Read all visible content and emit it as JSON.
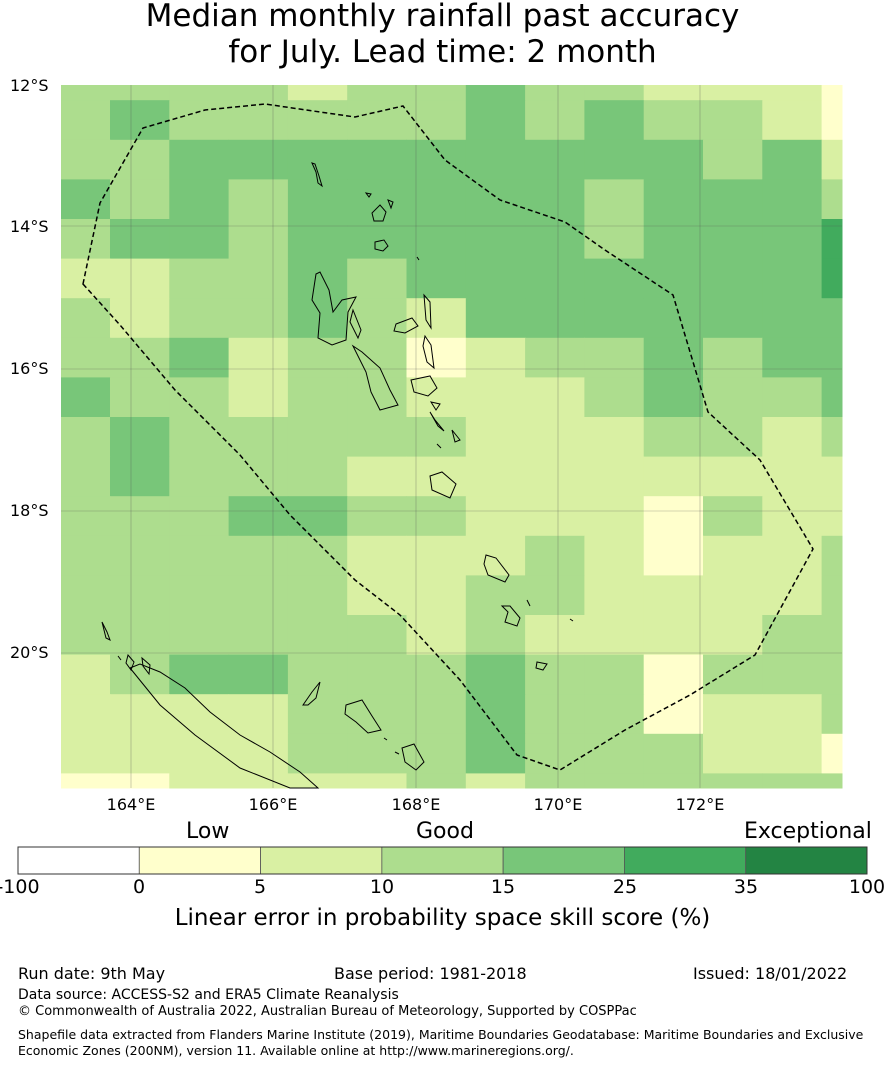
{
  "title": {
    "line1": "Median monthly rainfall past accuracy",
    "line2": "for July. Lead time: 2 month"
  },
  "map": {
    "lat_labels": [
      "12°S",
      "14°S",
      "16°S",
      "18°S",
      "20°S"
    ],
    "lon_labels": [
      "164°E",
      "166°E",
      "168°E",
      "170°E",
      "172°E"
    ],
    "grid_values": [
      [
        15,
        15,
        15,
        15,
        10,
        15,
        15,
        25,
        15,
        15,
        10,
        10,
        10,
        5
      ],
      [
        15,
        25,
        15,
        15,
        15,
        15,
        15,
        25,
        15,
        25,
        15,
        15,
        10,
        5
      ],
      [
        15,
        15,
        25,
        25,
        25,
        25,
        25,
        25,
        25,
        25,
        25,
        15,
        25,
        10
      ],
      [
        25,
        15,
        25,
        15,
        25,
        25,
        25,
        25,
        25,
        15,
        25,
        25,
        25,
        15
      ],
      [
        15,
        25,
        25,
        15,
        25,
        25,
        25,
        25,
        25,
        15,
        25,
        25,
        25,
        35
      ],
      [
        10,
        10,
        15,
        15,
        25,
        15,
        25,
        25,
        25,
        25,
        25,
        25,
        25,
        35
      ],
      [
        15,
        10,
        15,
        15,
        25,
        15,
        10,
        25,
        25,
        25,
        25,
        25,
        25,
        25
      ],
      [
        15,
        15,
        25,
        10,
        15,
        15,
        5,
        10,
        15,
        15,
        25,
        15,
        25,
        25
      ],
      [
        25,
        15,
        15,
        10,
        15,
        15,
        10,
        10,
        10,
        15,
        25,
        15,
        15,
        25
      ],
      [
        15,
        25,
        15,
        15,
        15,
        15,
        15,
        10,
        10,
        10,
        15,
        15,
        10,
        15
      ],
      [
        15,
        25,
        15,
        15,
        15,
        10,
        10,
        10,
        10,
        10,
        10,
        10,
        10,
        10
      ],
      [
        15,
        15,
        15,
        25,
        25,
        15,
        15,
        10,
        10,
        10,
        5,
        15,
        10,
        10
      ],
      [
        15,
        15,
        15,
        15,
        15,
        10,
        10,
        10,
        15,
        10,
        5,
        10,
        10,
        15
      ],
      [
        15,
        15,
        15,
        15,
        15,
        10,
        10,
        15,
        15,
        10,
        10,
        10,
        10,
        15
      ],
      [
        15,
        15,
        15,
        15,
        15,
        15,
        10,
        15,
        10,
        10,
        10,
        10,
        15,
        15
      ],
      [
        10,
        15,
        25,
        25,
        15,
        15,
        15,
        25,
        15,
        15,
        5,
        15,
        15,
        15
      ],
      [
        10,
        10,
        10,
        10,
        15,
        15,
        15,
        25,
        15,
        15,
        5,
        10,
        10,
        15
      ],
      [
        10,
        10,
        10,
        10,
        15,
        15,
        15,
        25,
        15,
        15,
        15,
        10,
        10,
        5
      ],
      [
        5,
        5,
        10,
        10,
        10,
        10,
        15,
        10,
        15,
        15,
        15,
        15,
        15,
        15
      ],
      [
        5,
        5,
        5,
        5,
        15,
        15,
        15,
        15,
        15,
        15,
        15,
        15,
        15,
        15
      ]
    ]
  },
  "colorbar": {
    "category_labels": [
      "Low",
      "Good",
      "Exceptional"
    ],
    "ticks": [
      "-100",
      "0",
      "5",
      "10",
      "15",
      "25",
      "35",
      "100"
    ],
    "colors": [
      "#ffffff",
      "#ffffcc",
      "#d9f0a3",
      "#addd8e",
      "#78c679",
      "#41ab5d",
      "#238443"
    ],
    "title": "Linear error in probability space skill score (%)"
  },
  "footer": {
    "run_date": "Run date: 9th May",
    "base_period": "Base period: 1981-2018",
    "issued": "Issued: 18/01/2022",
    "data_source": "Data source: ACCESS-S2 and ERA5 Climate Reanalysis",
    "copyright": "© Commonwealth of Australia 2022, Australian Bureau of Meteorology, Supported by COSPPac",
    "shapefile_note": "Shapefile data extracted from Flanders Marine Institute (2019), Maritime Boundaries Geodatabase: Maritime Boundaries and Exclusive Economic Zones (200NM), version 11. Available online at http://www.marineregions.org/."
  }
}
